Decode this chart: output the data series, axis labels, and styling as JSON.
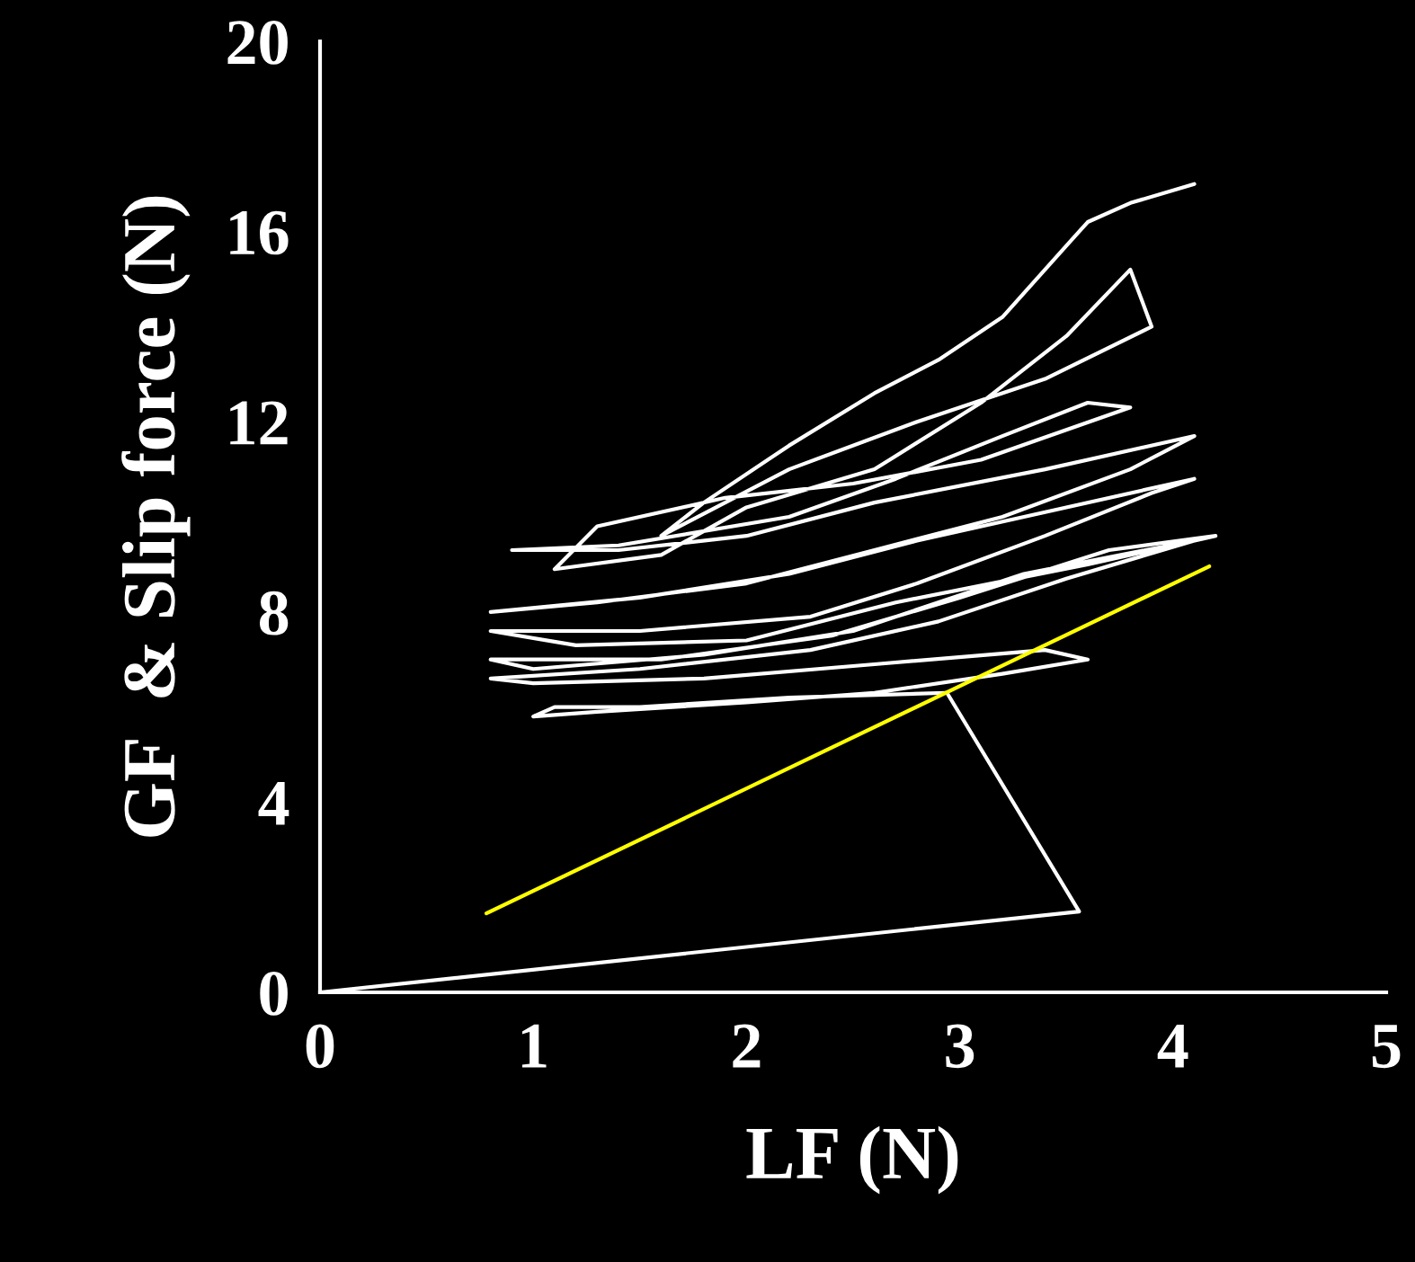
{
  "chart_data": {
    "type": "line",
    "xlabel": "LF (N)",
    "ylabel": "GF  & Slip force (N)",
    "xlim": [
      0,
      5
    ],
    "xticks": [
      0,
      1,
      2,
      3,
      4,
      5
    ],
    "ylim": [
      0,
      20
    ],
    "yticks": [
      0,
      4,
      8,
      12,
      16,
      20
    ],
    "grid": false,
    "legend": false,
    "marker": "none",
    "line_style": "solid",
    "series": [
      {
        "color": "#ffffff",
        "x": [
          0,
          3.56,
          2.94,
          2.2,
          1.5,
          1.1,
          1.0,
          1.3,
          2.0,
          2.6,
          3.2,
          3.6,
          3.4,
          2.6,
          1.8,
          1.0,
          0.8,
          1.5,
          2.3,
          2.9,
          3.5,
          4.1,
          3.3,
          2.5,
          1.8,
          1.0,
          0.8,
          1.6,
          2.4,
          3.0,
          3.7,
          4.2,
          3.6,
          2.7,
          2.0,
          1.2,
          0.8,
          1.5,
          2.3,
          2.8,
          3.4,
          3.9,
          4.1,
          3.5,
          2.8,
          2.2,
          1.5,
          0.8,
          1.3,
          2.0,
          2.6,
          3.2,
          3.8,
          4.1,
          3.4,
          2.6,
          2.0,
          1.4,
          0.9,
          1.4,
          2.2,
          2.7,
          3.2,
          3.6,
          3.8,
          3.1,
          2.5,
          1.9,
          1.3,
          1.1,
          1.6,
          2.0,
          2.6,
          3.1,
          3.5,
          3.8,
          3.9,
          3.4,
          2.8,
          2.2,
          1.6,
          1.8,
          2.2,
          2.6,
          2.9,
          3.2,
          3.5,
          3.6,
          3.8,
          4.1
        ],
        "values": [
          0,
          1.7,
          6.3,
          6.2,
          6.0,
          6.0,
          5.8,
          5.9,
          6.1,
          6.3,
          6.7,
          7.0,
          7.2,
          6.9,
          6.6,
          6.5,
          6.6,
          6.8,
          7.2,
          7.8,
          8.7,
          9.5,
          8.8,
          7.6,
          7.1,
          6.8,
          7.0,
          7.0,
          7.5,
          8.3,
          9.3,
          9.6,
          9.0,
          8.2,
          7.4,
          7.3,
          7.6,
          7.6,
          7.9,
          8.6,
          9.6,
          10.5,
          10.8,
          10.2,
          9.5,
          8.8,
          8.3,
          8.0,
          8.2,
          8.6,
          9.3,
          10.0,
          11.0,
          11.7,
          11.0,
          10.3,
          9.6,
          9.3,
          9.3,
          9.4,
          10.0,
          10.8,
          11.7,
          12.4,
          12.3,
          11.2,
          10.7,
          10.4,
          9.8,
          8.9,
          9.2,
          10.2,
          11.0,
          12.4,
          13.8,
          15.2,
          14.0,
          12.9,
          12.0,
          11.0,
          9.6,
          10.3,
          11.5,
          12.6,
          13.3,
          14.2,
          15.7,
          16.2,
          16.6,
          17.0
        ]
      },
      {
        "color": "#ffff00",
        "x": [
          0.78,
          4.17
        ],
        "values": [
          1.66,
          8.96
        ]
      }
    ]
  }
}
